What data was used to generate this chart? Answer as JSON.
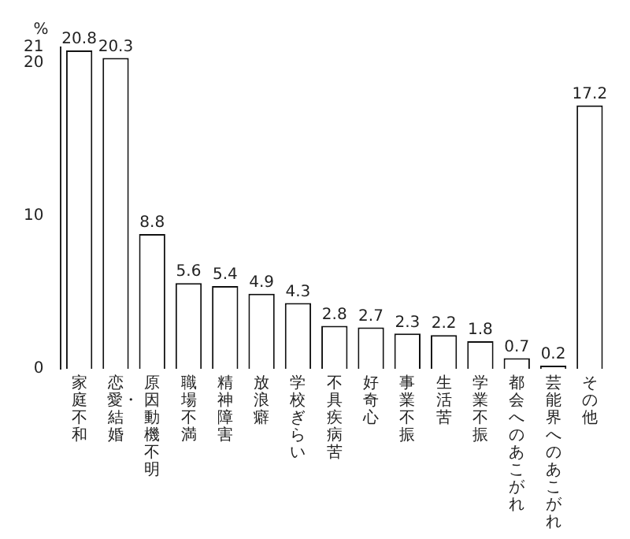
{
  "chart_data": {
    "type": "bar",
    "ylabel": "%",
    "categories": [
      "家庭不和",
      "恋愛・結婚",
      "原因動機不明",
      "職場不満",
      "精神障害",
      "放浪癖",
      "学校ぎらい",
      "不具疾病苦",
      "好奇心",
      "事業不振",
      "生活苦",
      "学業不振",
      "都会へのあこがれ",
      "芸能界へのあこがれ",
      "その他"
    ],
    "values": [
      20.8,
      20.3,
      8.8,
      5.6,
      5.4,
      4.9,
      4.3,
      2.8,
      2.7,
      2.3,
      2.2,
      1.8,
      0.7,
      0.2,
      17.2
    ],
    "color": "#ffffff",
    "ylim": [
      0,
      21
    ],
    "yticks": [
      0,
      10,
      20,
      21
    ],
    "grid": false,
    "data_labels": true,
    "legend": false
  }
}
